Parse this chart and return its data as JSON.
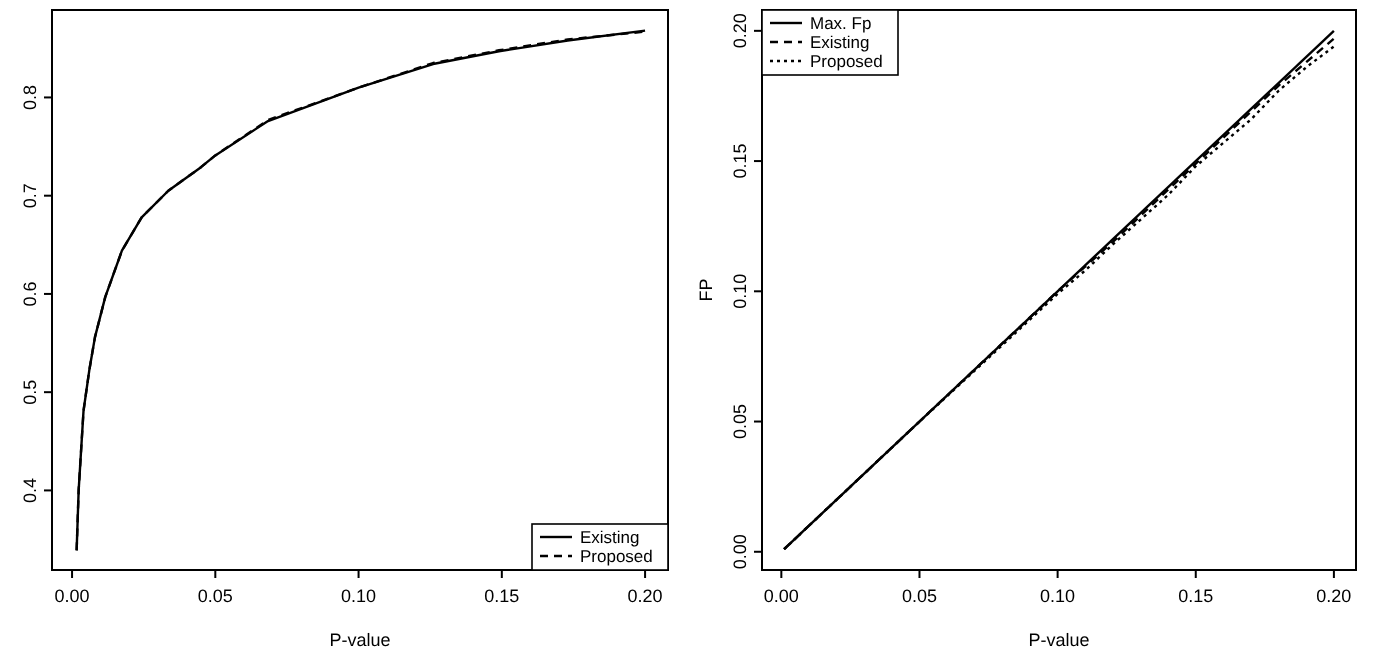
{
  "chart_data": [
    {
      "type": "line",
      "xlabel": "P-value",
      "xlim": [
        -0.007,
        0.208
      ],
      "xticks": [
        {
          "value": 0,
          "label": "0.00"
        },
        {
          "value": 0.05,
          "label": "0.05"
        },
        {
          "value": 0.1,
          "label": "0.10"
        },
        {
          "value": 0.15,
          "label": "0.15"
        },
        {
          "value": 0.2,
          "label": "0.20"
        }
      ],
      "ylim": [
        0.319,
        0.889
      ],
      "yticks": [
        0.4,
        0.5,
        0.6,
        0.7,
        0.8
      ],
      "legend": "bottom right",
      "grid": false,
      "series": [
        {
          "name": "Existing",
          "color": "#000000",
          "line_style": "solid",
          "x": [
            0.0016,
            0.0023,
            0.004,
            0.006,
            0.008,
            0.0116,
            0.0174,
            0.0243,
            0.0336,
            0.045,
            0.05,
            0.0684,
            0.1,
            0.126,
            0.149,
            0.173,
            0.2
          ],
          "values": [
            0.339,
            0.4,
            0.481,
            0.522,
            0.556,
            0.597,
            0.644,
            0.678,
            0.705,
            0.729,
            0.741,
            0.776,
            0.81,
            0.834,
            0.847,
            0.858,
            0.868
          ]
        },
        {
          "name": "Proposed",
          "color": "#000000",
          "line_style": "dashed",
          "x": [
            0.0016,
            0.0023,
            0.004,
            0.006,
            0.008,
            0.0116,
            0.0174,
            0.0243,
            0.0336,
            0.045,
            0.05,
            0.0684,
            0.1,
            0.126,
            0.149,
            0.173,
            0.2
          ],
          "values": [
            0.339,
            0.4,
            0.481,
            0.522,
            0.556,
            0.597,
            0.644,
            0.678,
            0.705,
            0.729,
            0.741,
            0.777,
            0.81,
            0.835,
            0.848,
            0.859,
            0.867
          ]
        }
      ]
    },
    {
      "type": "line",
      "xlabel": "P-value",
      "ylabel": "FP",
      "xlim": [
        -0.007,
        0.208
      ],
      "xticks": [
        {
          "value": 0,
          "label": "0.00"
        },
        {
          "value": 0.05,
          "label": "0.05"
        },
        {
          "value": 0.1,
          "label": "0.10"
        },
        {
          "value": 0.15,
          "label": "0.15"
        },
        {
          "value": 0.2,
          "label": "0.20"
        }
      ],
      "ylim": [
        -0.007,
        0.208
      ],
      "yticks": [
        {
          "value": 0,
          "label": "0.00"
        },
        {
          "value": 0.05,
          "label": "0.05"
        },
        {
          "value": 0.1,
          "label": "0.10"
        },
        {
          "value": 0.15,
          "label": "0.15"
        },
        {
          "value": 0.2,
          "label": "0.20"
        }
      ],
      "legend": "top left",
      "grid": false,
      "series": [
        {
          "name": "Max. Fp",
          "color": "#000000",
          "line_style": "solid",
          "x": [
            0.001,
            0.2
          ],
          "values": [
            0.001,
            0.2
          ]
        },
        {
          "name": "Existing",
          "color": "#000000",
          "line_style": "dashed",
          "x": [
            0.001,
            0.05,
            0.1,
            0.12,
            0.14,
            0.15,
            0.16,
            0.17,
            0.18,
            0.19,
            0.2
          ],
          "values": [
            0.001,
            0.05,
            0.1,
            0.119,
            0.139,
            0.149,
            0.159,
            0.169,
            0.179,
            0.188,
            0.197
          ]
        },
        {
          "name": "Proposed",
          "color": "#000000",
          "line_style": "dotted",
          "x": [
            0.001,
            0.05,
            0.1,
            0.11,
            0.12,
            0.14,
            0.15,
            0.16,
            0.17,
            0.18,
            0.19,
            0.2
          ],
          "values": [
            0.001,
            0.05,
            0.099,
            0.108,
            0.118,
            0.137,
            0.148,
            0.157,
            0.166,
            0.177,
            0.186,
            0.194
          ]
        }
      ]
    }
  ]
}
